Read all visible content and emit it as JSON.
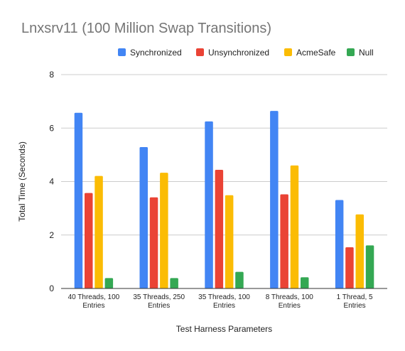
{
  "chart_data": {
    "type": "bar",
    "title": "Lnxsrv11 (100 Million Swap Transitions)",
    "xlabel": "Test Harness Parameters",
    "ylabel": "Total Time (Seconds)",
    "ylim": [
      0,
      8
    ],
    "yticks": [
      0,
      2,
      4,
      6,
      8
    ],
    "grid": true,
    "legend": "top-right",
    "categories": [
      [
        "40 Threads, 100",
        "Entries"
      ],
      [
        "35 Threads, 250",
        "Entries"
      ],
      [
        "35 Threads, 100",
        "Entries"
      ],
      [
        "8 Threads, 100",
        "Entries"
      ],
      [
        "1 Thread, 5",
        "Entries"
      ]
    ],
    "series": [
      {
        "name": "Synchronized",
        "color": "#4285f4",
        "values": [
          6.57,
          5.29,
          6.25,
          6.64,
          3.31
        ]
      },
      {
        "name": "Unsynchronized",
        "color": "#ea4335",
        "values": [
          3.57,
          3.41,
          4.44,
          3.52,
          1.54
        ]
      },
      {
        "name": "AcmeSafe",
        "color": "#fbbc04",
        "values": [
          4.21,
          4.33,
          3.49,
          4.6,
          2.77
        ]
      },
      {
        "name": "Null",
        "color": "#34a853",
        "values": [
          0.39,
          0.39,
          0.62,
          0.42,
          1.61
        ]
      }
    ]
  }
}
